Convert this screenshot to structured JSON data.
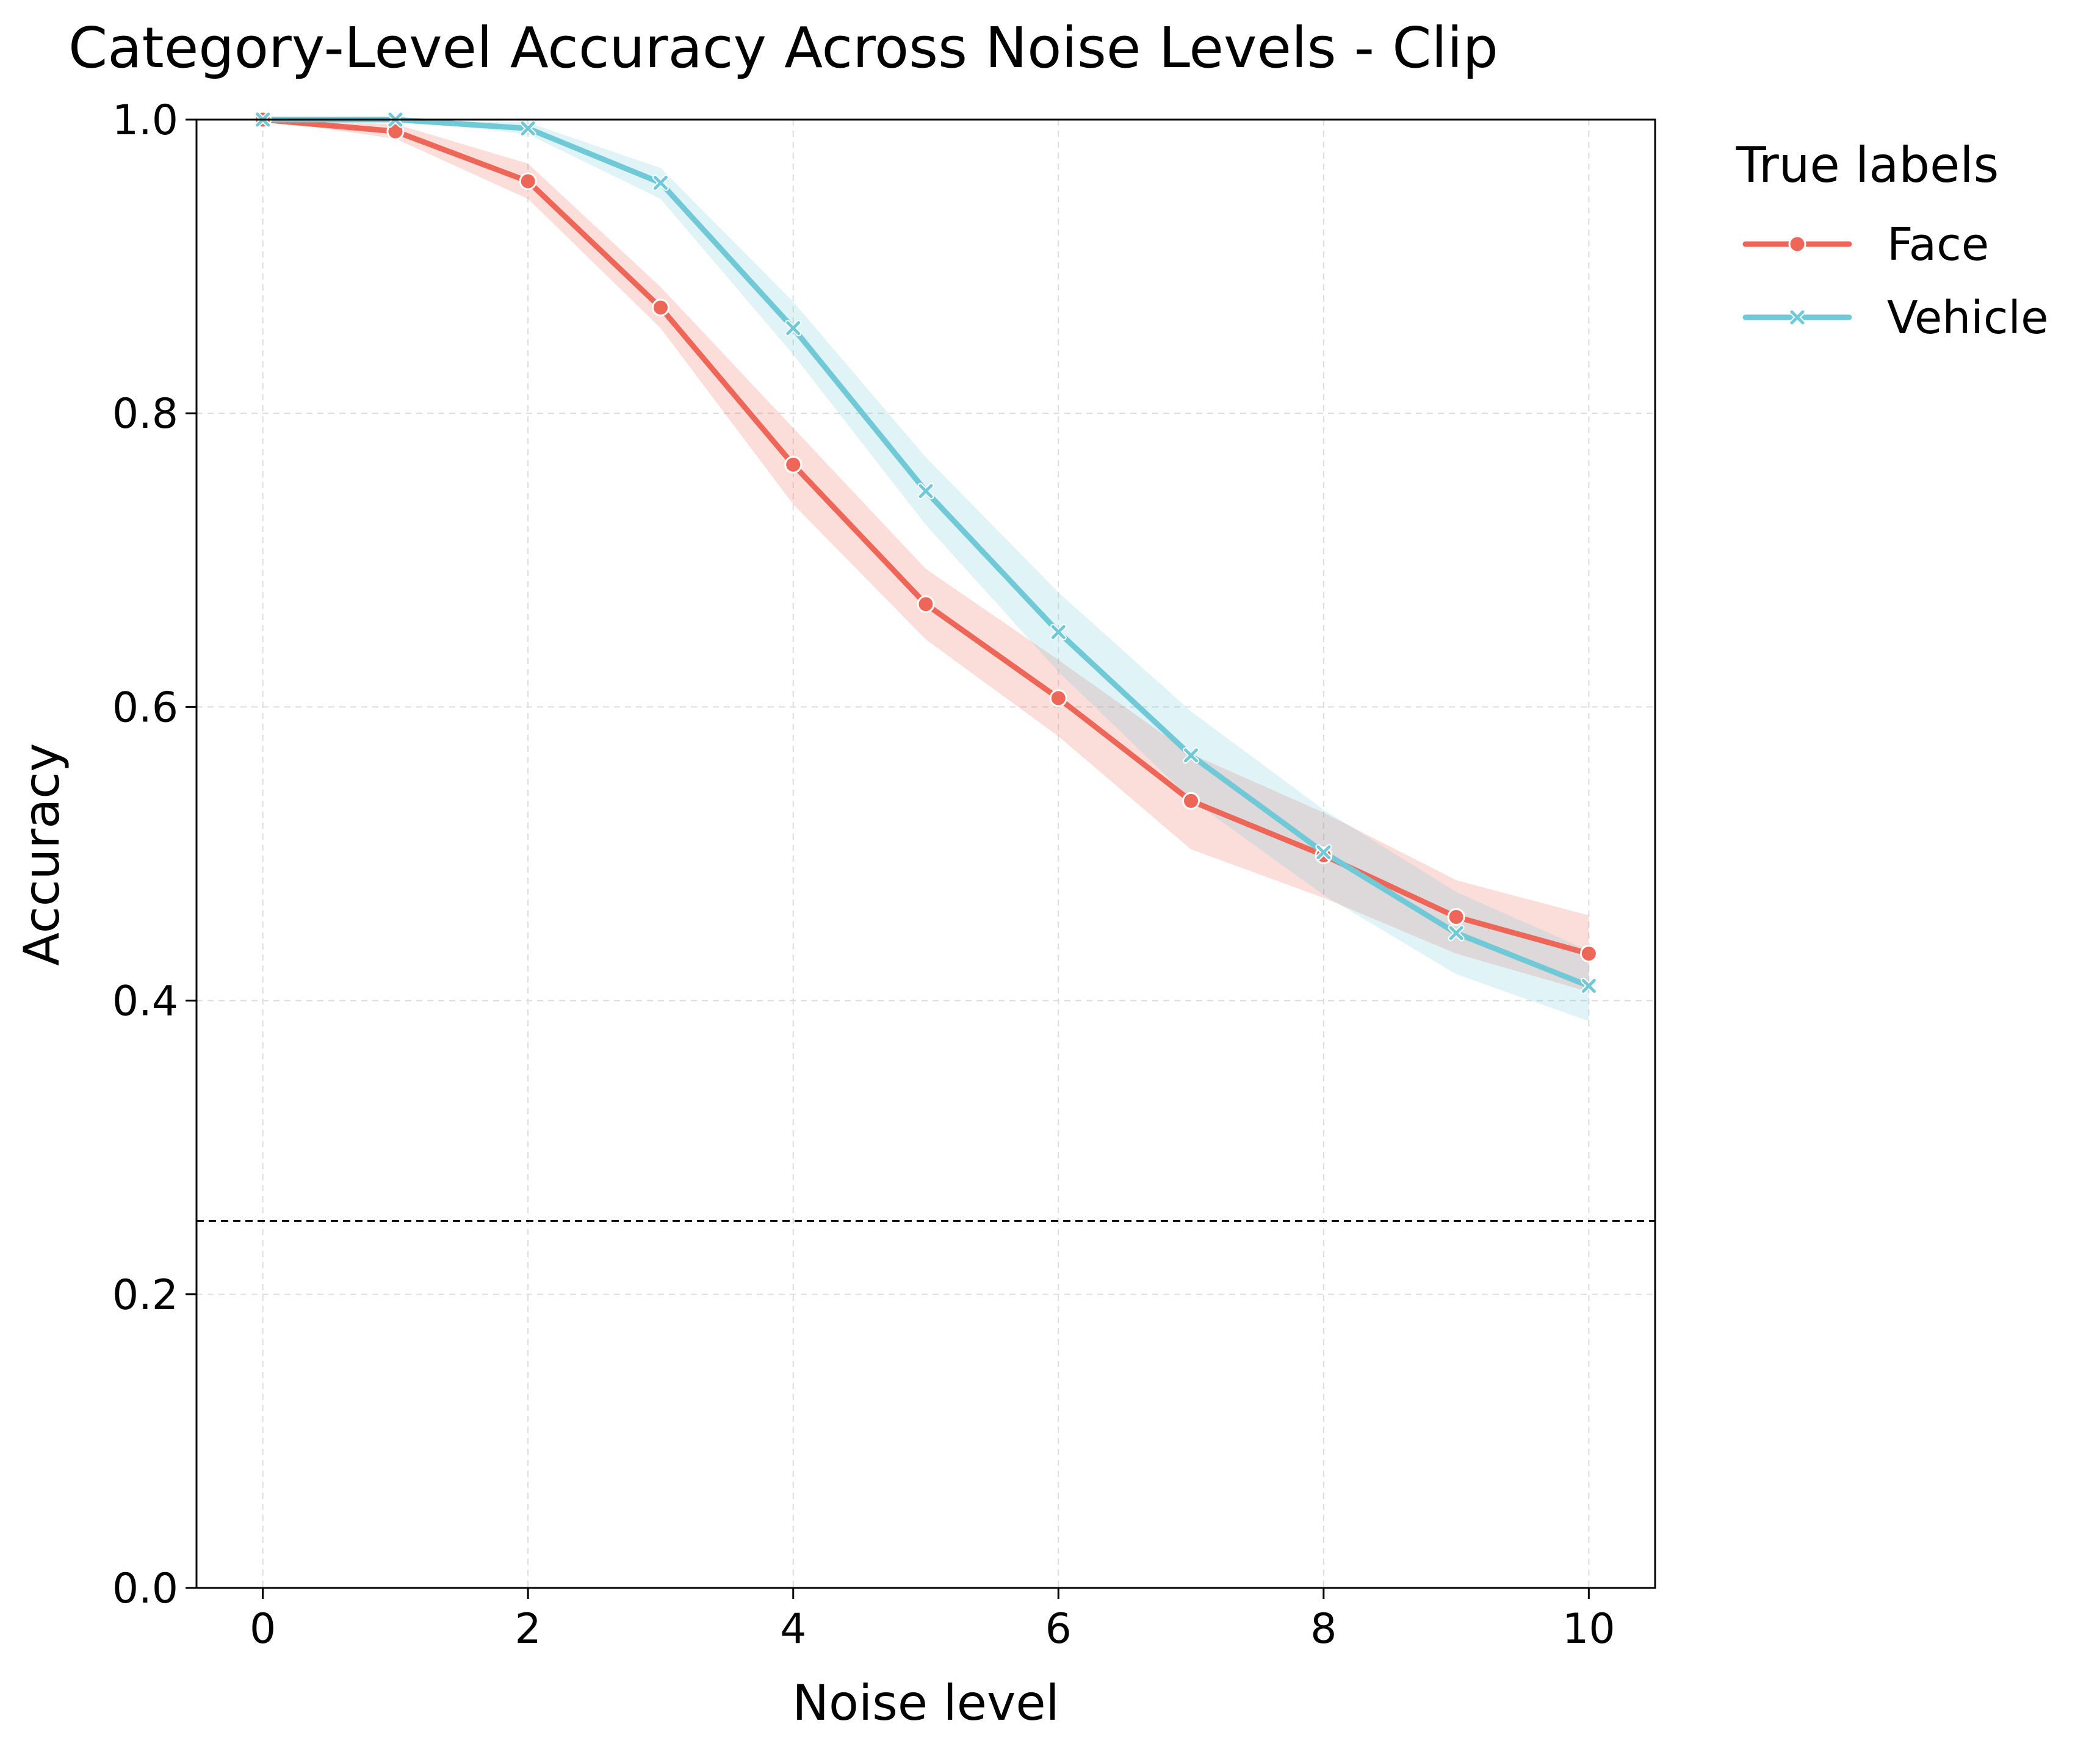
{
  "chart_data": {
    "type": "line",
    "title": "Category-Level Accuracy Across Noise Levels - Clip",
    "xlabel": "Noise level",
    "ylabel": "Accuracy",
    "xlim": [
      -0.5,
      10.5
    ],
    "ylim": [
      0.0,
      1.0
    ],
    "xticks": [
      0,
      2,
      4,
      6,
      8,
      10
    ],
    "yticks": [
      0.0,
      0.2,
      0.4,
      0.6,
      0.8,
      1.0
    ],
    "xtick_labels": [
      "0",
      "2",
      "4",
      "6",
      "8",
      "10"
    ],
    "ytick_labels": [
      "0.0",
      "0.2",
      "0.4",
      "0.6",
      "0.8",
      "1.0"
    ],
    "grid": true,
    "reference_line": {
      "y": 0.25,
      "style": "dashed",
      "color": "#000000"
    },
    "legend": {
      "title": "True labels",
      "placement": "outside-top-right"
    },
    "x": [
      0,
      1,
      2,
      3,
      4,
      5,
      6,
      7,
      8,
      9,
      10
    ],
    "series": [
      {
        "name": "Face",
        "color": "#ee6658",
        "marker": "circle",
        "values": [
          1.0,
          0.992,
          0.958,
          0.872,
          0.765,
          0.67,
          0.606,
          0.536,
          0.499,
          0.457,
          0.432
        ],
        "ci_lower": [
          1.0,
          0.987,
          0.946,
          0.858,
          0.738,
          0.646,
          0.58,
          0.503,
          0.47,
          0.432,
          0.406
        ],
        "ci_upper": [
          1.0,
          0.997,
          0.97,
          0.886,
          0.79,
          0.694,
          0.632,
          0.568,
          0.528,
          0.482,
          0.458
        ]
      },
      {
        "name": "Vehicle",
        "color": "#70c9d6",
        "marker": "x",
        "values": [
          1.0,
          1.0,
          0.994,
          0.957,
          0.858,
          0.747,
          0.651,
          0.567,
          0.501,
          0.446,
          0.41
        ],
        "ci_lower": [
          1.0,
          1.0,
          0.99,
          0.946,
          0.84,
          0.724,
          0.624,
          0.537,
          0.472,
          0.418,
          0.386
        ],
        "ci_upper": [
          1.0,
          1.0,
          0.998,
          0.967,
          0.876,
          0.77,
          0.678,
          0.597,
          0.53,
          0.474,
          0.434
        ]
      }
    ]
  }
}
